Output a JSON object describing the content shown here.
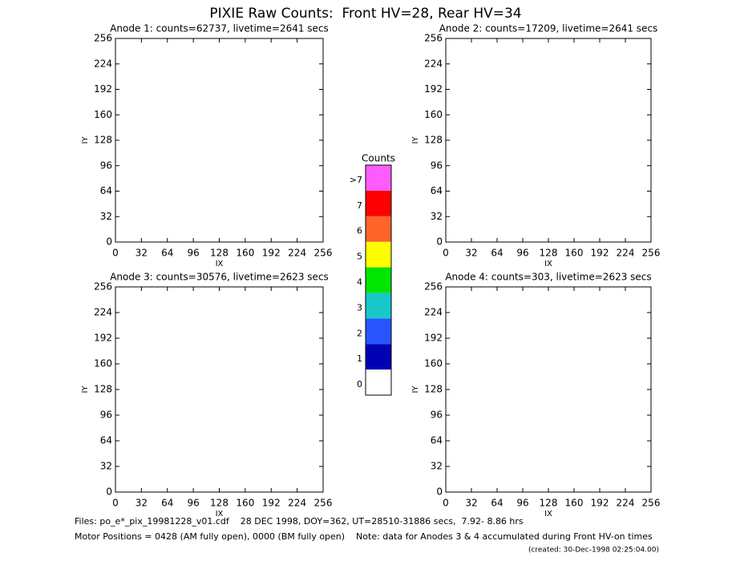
{
  "title": "PIXIE Raw Counts:  Front HV=28, Rear HV=34",
  "chart_data": [
    {
      "type": "heatmap",
      "title": "Anode 1: counts=62737, livetime=2641 secs",
      "xlabel": "IX",
      "ylabel": "IY",
      "xlim": [
        0,
        256
      ],
      "ylim": [
        0,
        256
      ],
      "xticks": [
        0,
        32,
        64,
        96,
        128,
        160,
        192,
        224,
        256
      ],
      "yticks": [
        0,
        32,
        64,
        96,
        128,
        160,
        192,
        224,
        256
      ]
    },
    {
      "type": "heatmap",
      "title": "Anode 2: counts=17209, livetime=2641 secs",
      "xlabel": "IX",
      "ylabel": "IY",
      "xlim": [
        0,
        256
      ],
      "ylim": [
        0,
        256
      ],
      "xticks": [
        0,
        32,
        64,
        96,
        128,
        160,
        192,
        224,
        256
      ],
      "yticks": [
        0,
        32,
        64,
        96,
        128,
        160,
        192,
        224,
        256
      ]
    },
    {
      "type": "heatmap",
      "title": "Anode 3: counts=30576, livetime=2623 secs",
      "xlabel": "IX",
      "ylabel": "IY",
      "xlim": [
        0,
        256
      ],
      "ylim": [
        0,
        256
      ],
      "xticks": [
        0,
        32,
        64,
        96,
        128,
        160,
        192,
        224,
        256
      ],
      "yticks": [
        0,
        32,
        64,
        96,
        128,
        160,
        192,
        224,
        256
      ]
    },
    {
      "type": "heatmap",
      "title": "Anode 4: counts=303, livetime=2623 secs",
      "xlabel": "IX",
      "ylabel": "IY",
      "xlim": [
        0,
        256
      ],
      "ylim": [
        0,
        256
      ],
      "xticks": [
        0,
        32,
        64,
        96,
        128,
        160,
        192,
        224,
        256
      ],
      "yticks": [
        0,
        32,
        64,
        96,
        128,
        160,
        192,
        224,
        256
      ]
    }
  ],
  "colorbar": {
    "title": "Counts",
    "labels": [
      "0",
      "1",
      "2",
      "3",
      "4",
      "5",
      "6",
      "7",
      ">7"
    ],
    "colors": [
      "#ffffff",
      "#0000b4",
      "#2854ff",
      "#18c8c8",
      "#00e600",
      "#ffff00",
      "#ff6428",
      "#ff0000",
      "#ff5cff"
    ]
  },
  "footer": [
    "Files: po_e*_pix_19981228_v01.cdf    28 DEC 1998, DOY=362, UT=28510-31886 secs,  7.92- 8.86 hrs",
    "Motor Positions = 0428 (AM fully open), 0000 (BM fully open)    Note: data for Anodes 3 & 4 accumulated during Front HV-on times",
    "(created: 30-Dec-1998 02:25:04.00)"
  ]
}
